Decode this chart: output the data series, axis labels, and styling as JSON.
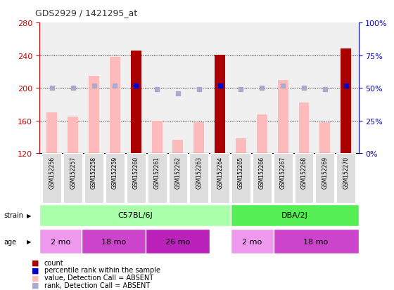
{
  "title": "GDS2929 / 1421295_at",
  "samples": [
    "GSM152256",
    "GSM152257",
    "GSM152258",
    "GSM152259",
    "GSM152260",
    "GSM152261",
    "GSM152262",
    "GSM152263",
    "GSM152264",
    "GSM152265",
    "GSM152266",
    "GSM152267",
    "GSM152268",
    "GSM152269",
    "GSM152270"
  ],
  "bar_values": [
    170,
    165,
    215,
    238,
    246,
    160,
    137,
    158,
    241,
    138,
    168,
    210,
    182,
    158,
    248
  ],
  "bar_is_present": [
    false,
    false,
    false,
    false,
    true,
    false,
    false,
    false,
    true,
    false,
    false,
    false,
    false,
    false,
    true
  ],
  "rank_values": [
    50,
    50,
    52,
    52,
    52,
    49,
    46,
    49,
    52,
    49,
    50,
    52,
    50,
    49,
    52
  ],
  "rank_is_present": [
    false,
    false,
    false,
    false,
    true,
    false,
    false,
    false,
    true,
    false,
    false,
    false,
    false,
    false,
    true
  ],
  "ylim_left": [
    120,
    280
  ],
  "ylim_right": [
    0,
    100
  ],
  "yticks_left": [
    120,
    160,
    200,
    240,
    280
  ],
  "yticks_right": [
    0,
    25,
    50,
    75,
    100
  ],
  "strain_groups": [
    {
      "label": "C57BL/6J",
      "start": 0,
      "end": 8,
      "color": "#aaffaa"
    },
    {
      "label": "DBA/2J",
      "start": 9,
      "end": 14,
      "color": "#55ee55"
    }
  ],
  "age_groups": [
    {
      "label": "2 mo",
      "start": 0,
      "end": 1,
      "color": "#ee88ee"
    },
    {
      "label": "18 mo",
      "start": 2,
      "end": 4,
      "color": "#dd55dd"
    },
    {
      "label": "26 mo",
      "start": 5,
      "end": 7,
      "color": "#cc33cc"
    },
    {
      "label": "2 mo",
      "start": 9,
      "end": 10,
      "color": "#ee88ee"
    },
    {
      "label": "18 mo",
      "start": 11,
      "end": 14,
      "color": "#dd55dd"
    }
  ],
  "bar_color_present": "#aa0000",
  "bar_color_absent": "#ffbbbb",
  "rank_color_present": "#0000cc",
  "rank_color_absent": "#aaaacc",
  "left_axis_color": "#cc0000",
  "right_axis_color": "#0000cc",
  "bg_color": "#ffffff",
  "grid_color": "#000000",
  "bar_width": 0.5
}
